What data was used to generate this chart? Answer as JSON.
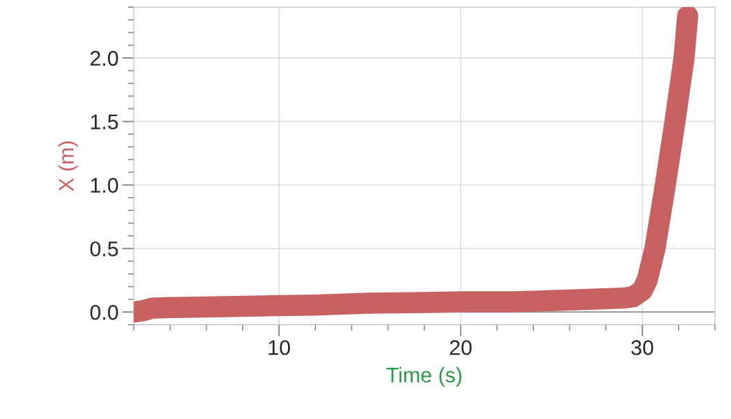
{
  "chart_data": {
    "type": "line",
    "xlabel": "Time (s)",
    "ylabel": "X (m)",
    "x": [
      2,
      2.5,
      3,
      4,
      6,
      8,
      10,
      12,
      15,
      18,
      20,
      23,
      25,
      27,
      29,
      29.5,
      30,
      30.27,
      30.7,
      31.27,
      31.8,
      32.3,
      32.5
    ],
    "series": [
      {
        "color": "#c86262",
        "values": [
          0.0,
          0.01,
          0.03,
          0.035,
          0.04,
          0.045,
          0.05,
          0.055,
          0.07,
          0.075,
          0.08,
          0.08,
          0.09,
          0.1,
          0.11,
          0.12,
          0.17,
          0.25,
          0.5,
          1.0,
          1.5,
          2.0,
          2.33
        ]
      }
    ],
    "xlim": [
      2,
      34
    ],
    "ylim": [
      -0.1,
      2.4
    ],
    "xticks": [
      10,
      20,
      30
    ],
    "yticks": [
      {
        "value": 0,
        "label": "0.0"
      },
      {
        "value": 0.5,
        "label": "0.5"
      },
      {
        "value": 1,
        "label": "1.0"
      },
      {
        "value": 1.5,
        "label": "1.5"
      },
      {
        "value": 2,
        "label": "2.0"
      }
    ],
    "ref_lines": [
      {
        "axis": "y",
        "value": 0,
        "color": "#999999"
      }
    ],
    "grid": true,
    "marker": "none",
    "line_style": "solid"
  }
}
